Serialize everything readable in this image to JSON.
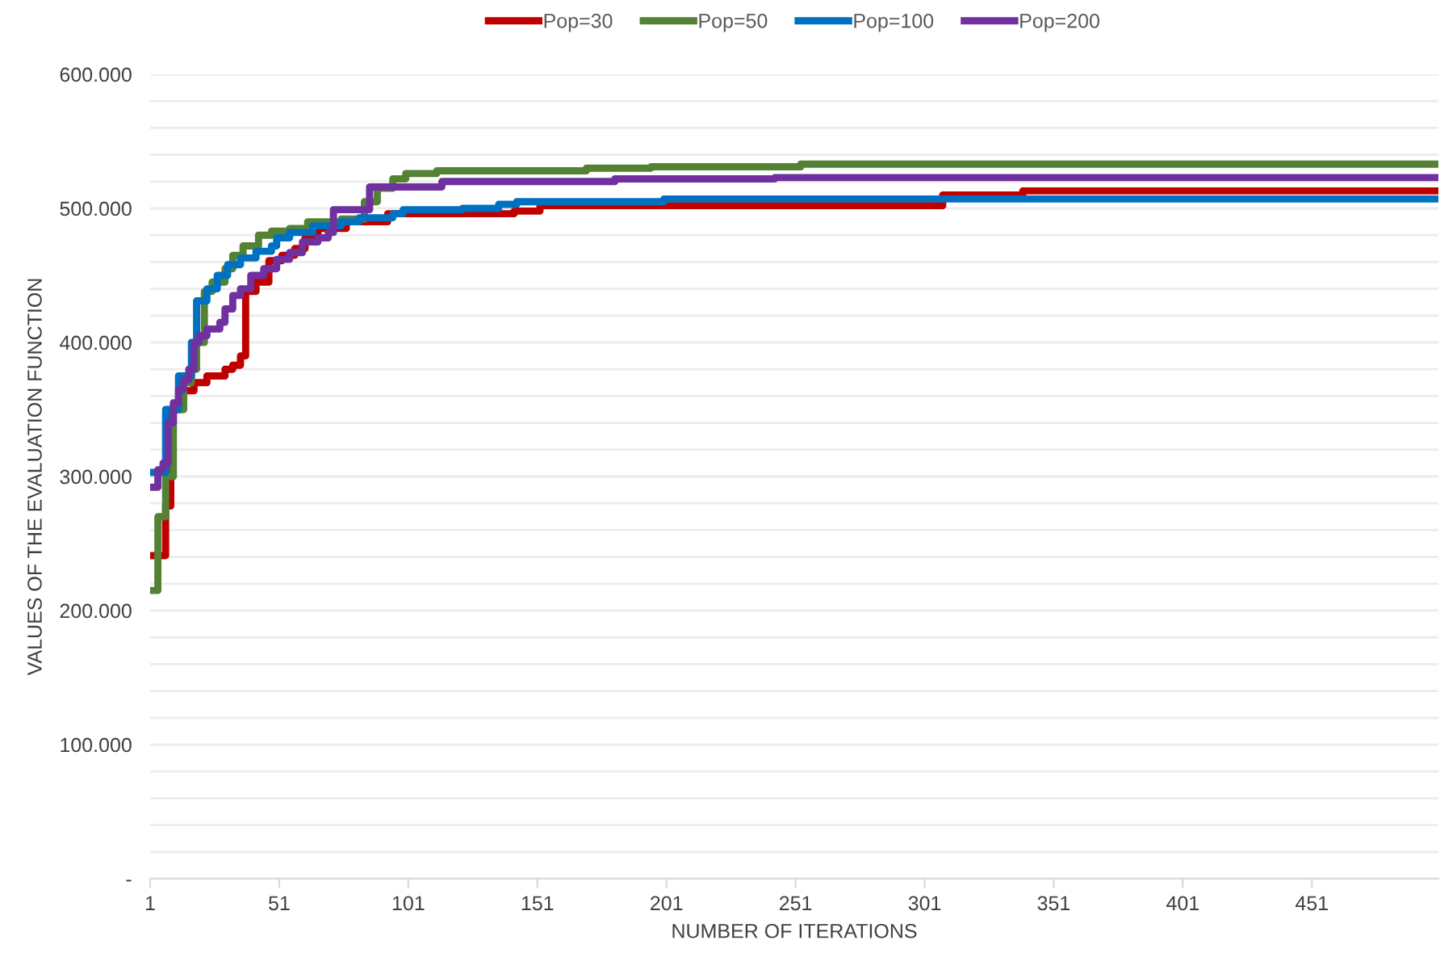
{
  "chart_data": {
    "type": "step",
    "xlabel": "NUMBER OF ITERATIONS",
    "ylabel": "VALUES OF THE EVALUATION FUNCTION",
    "xlim": [
      1,
      500
    ],
    "xticks": [
      1,
      51,
      101,
      151,
      201,
      251,
      301,
      351,
      401,
      451
    ],
    "ylim": [
      0,
      600000
    ],
    "yticks": [
      {
        "value": 0,
        "label": "-"
      },
      {
        "value": 20000,
        "label": null
      },
      {
        "value": 40000,
        "label": null
      },
      {
        "value": 60000,
        "label": null
      },
      {
        "value": 80000,
        "label": null
      },
      {
        "value": 100000,
        "label": "100.000"
      },
      {
        "value": 120000,
        "label": null
      },
      {
        "value": 140000,
        "label": null
      },
      {
        "value": 160000,
        "label": null
      },
      {
        "value": 180000,
        "label": null
      },
      {
        "value": 200000,
        "label": "200.000"
      },
      {
        "value": 220000,
        "label": null
      },
      {
        "value": 240000,
        "label": null
      },
      {
        "value": 260000,
        "label": null
      },
      {
        "value": 280000,
        "label": null
      },
      {
        "value": 300000,
        "label": "300.000"
      },
      {
        "value": 320000,
        "label": null
      },
      {
        "value": 340000,
        "label": null
      },
      {
        "value": 360000,
        "label": null
      },
      {
        "value": 380000,
        "label": null
      },
      {
        "value": 400000,
        "label": "400.000"
      },
      {
        "value": 420000,
        "label": null
      },
      {
        "value": 440000,
        "label": null
      },
      {
        "value": 460000,
        "label": null
      },
      {
        "value": 480000,
        "label": null
      },
      {
        "value": 500000,
        "label": "500.000"
      },
      {
        "value": 520000,
        "label": null
      },
      {
        "value": 540000,
        "label": null
      },
      {
        "value": 560000,
        "label": null
      },
      {
        "value": 580000,
        "label": null
      },
      {
        "value": 600000,
        "label": "600.000"
      }
    ],
    "grid": "y",
    "legend": "top",
    "line_style": "solid",
    "series": [
      {
        "name": "Pop=30",
        "color": "#c00000",
        "x": [
          1,
          7,
          9,
          13,
          18,
          23,
          30,
          33,
          36,
          38,
          42,
          47,
          52,
          57,
          61,
          66,
          77,
          93,
          142,
          152,
          308,
          339,
          500
        ],
        "values": [
          241000,
          278000,
          350000,
          364000,
          370000,
          375000,
          380000,
          383000,
          390000,
          438000,
          445000,
          461000,
          465000,
          470000,
          478000,
          485000,
          490000,
          496000,
          498000,
          502000,
          510000,
          513000,
          513000
        ]
      },
      {
        "name": "Pop=50",
        "color": "#548235",
        "x": [
          1,
          4,
          7,
          10,
          14,
          17,
          19,
          22,
          25,
          30,
          33,
          37,
          43,
          48,
          55,
          62,
          75,
          84,
          89,
          95,
          100,
          112,
          170,
          195,
          253,
          500
        ],
        "values": [
          215000,
          270000,
          300000,
          350000,
          370000,
          380000,
          400000,
          438000,
          445000,
          455000,
          465000,
          472000,
          480000,
          483000,
          485000,
          490000,
          492000,
          505000,
          515000,
          522000,
          526000,
          528000,
          530000,
          531000,
          533000,
          533000
        ]
      },
      {
        "name": "Pop=100",
        "color": "#0070c0",
        "x": [
          1,
          7,
          12,
          17,
          19,
          23,
          27,
          31,
          36,
          42,
          48,
          50,
          55,
          64,
          75,
          82,
          95,
          99,
          122,
          136,
          143,
          200,
          500
        ],
        "values": [
          303000,
          350000,
          375000,
          400000,
          431000,
          440000,
          450000,
          458000,
          463000,
          468000,
          472000,
          478000,
          482000,
          487000,
          490000,
          493000,
          496000,
          499000,
          500000,
          503000,
          505000,
          507000,
          507000
        ]
      },
      {
        "name": "Pop=200",
        "color": "#7030a0",
        "x": [
          1,
          4,
          6,
          8,
          10,
          12,
          14,
          16,
          18,
          20,
          23,
          28,
          30,
          33,
          36,
          40,
          45,
          50,
          55,
          60,
          66,
          70,
          72,
          86,
          114,
          181,
          243,
          500
        ],
        "values": [
          292000,
          305000,
          310000,
          340000,
          355000,
          365000,
          372000,
          380000,
          400000,
          405000,
          410000,
          415000,
          425000,
          435000,
          440000,
          450000,
          455000,
          462000,
          467000,
          475000,
          478000,
          482000,
          499000,
          516000,
          520000,
          522000,
          523000,
          523000
        ]
      }
    ]
  }
}
